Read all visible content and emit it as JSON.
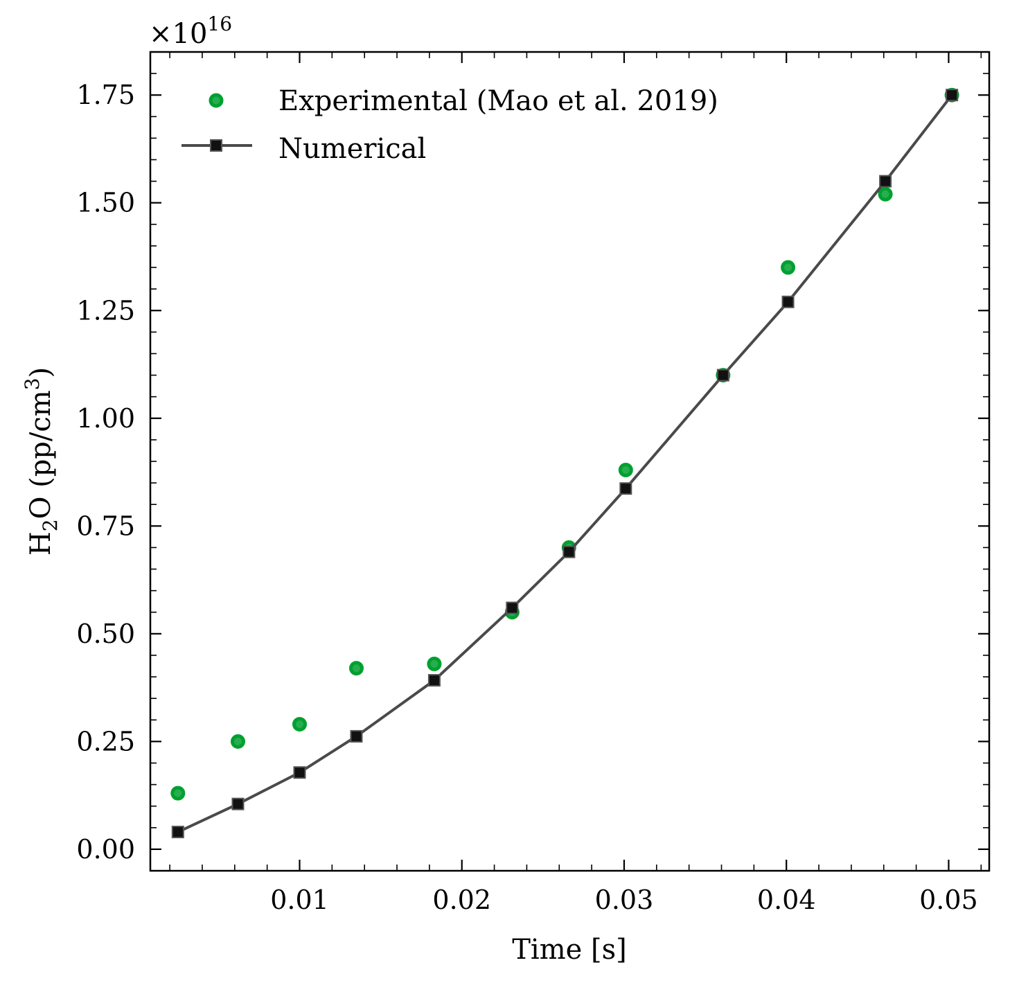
{
  "chart_data": {
    "type": "line",
    "title": "",
    "xlabel": "Time [s]",
    "ylabel_main": "H",
    "ylabel_sub": "2",
    "ylabel_mid": "O (pp/cm",
    "ylabel_sup": "3",
    "ylabel_end": ")",
    "y_scale_prefix": "×10",
    "y_scale_exponent": "16",
    "xlim": [
      0.0008,
      0.0525
    ],
    "ylim": [
      -0.05,
      1.85
    ],
    "xticks": [
      0.01,
      0.02,
      0.03,
      0.04,
      0.05
    ],
    "xtick_labels": [
      "0.01",
      "0.02",
      "0.03",
      "0.04",
      "0.05"
    ],
    "yticks": [
      0.0,
      0.25,
      0.5,
      0.75,
      1.0,
      1.25,
      1.5,
      1.75
    ],
    "ytick_labels": [
      "0.00",
      "0.25",
      "0.50",
      "0.75",
      "1.00",
      "1.25",
      "1.50",
      "1.75"
    ],
    "legend_position": "upper-left",
    "series": [
      {
        "name": "Experimental (Mao et al. 2019)",
        "kind": "scatter",
        "color": "#00a030",
        "x": [
          0.0025,
          0.0062,
          0.01,
          0.0135,
          0.0183,
          0.0231,
          0.0266,
          0.0301,
          0.0361,
          0.0401,
          0.0461,
          0.0502
        ],
        "y": [
          0.13,
          0.25,
          0.29,
          0.42,
          0.43,
          0.55,
          0.7,
          0.88,
          1.1,
          1.35,
          1.52,
          1.75
        ]
      },
      {
        "name": "Numerical",
        "kind": "line",
        "color": "#4a4a4a",
        "marker_color": "#111111",
        "x": [
          0.0025,
          0.0062,
          0.01,
          0.0135,
          0.0183,
          0.0231,
          0.0266,
          0.0301,
          0.0361,
          0.0401,
          0.0461,
          0.0502
        ],
        "y": [
          0.04,
          0.105,
          0.178,
          0.262,
          0.392,
          0.56,
          0.69,
          0.837,
          1.1,
          1.27,
          1.55,
          1.75
        ]
      }
    ]
  }
}
